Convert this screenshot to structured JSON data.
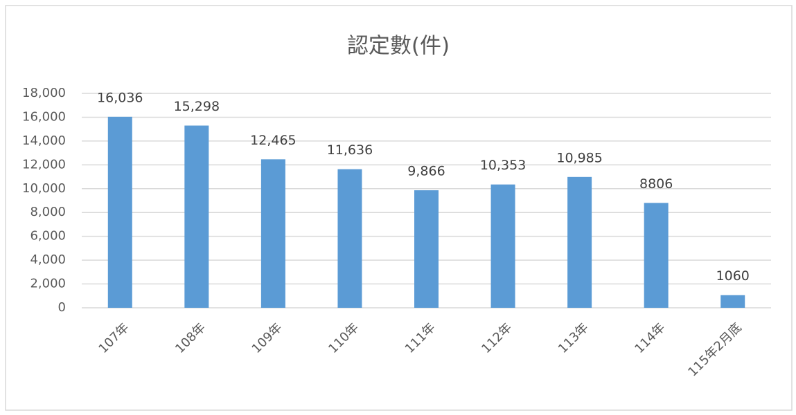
{
  "chart_data": {
    "type": "bar",
    "title": "認定數(件)",
    "categories": [
      "107年",
      "108年",
      "109年",
      "110年",
      "111年",
      "112年",
      "113年",
      "114年",
      "115年2月底"
    ],
    "values": [
      16036,
      15298,
      12465,
      11636,
      9866,
      10353,
      10985,
      8806,
      1060
    ],
    "value_labels": [
      "16,036",
      "15,298",
      "12,465",
      "11,636",
      "9,866",
      "10,353",
      "10,985",
      "8806",
      "1060"
    ],
    "color": "#5b9bd5",
    "ylim": [
      0,
      18000
    ],
    "yticks": [
      0,
      {
        "value": 2000,
        "label": "2,000"
      },
      {
        "value": 4000,
        "label": "4,000"
      },
      {
        "value": 6000,
        "label": "6,000"
      },
      {
        "value": 8000,
        "label": "8,000"
      },
      {
        "value": 10000,
        "label": "10,000"
      },
      {
        "value": 12000,
        "label": "12,000"
      },
      {
        "value": 14000,
        "label": "14,000"
      },
      {
        "value": 16000,
        "label": "16,000"
      },
      {
        "value": 18000,
        "label": "18,000"
      }
    ],
    "grid": true
  }
}
